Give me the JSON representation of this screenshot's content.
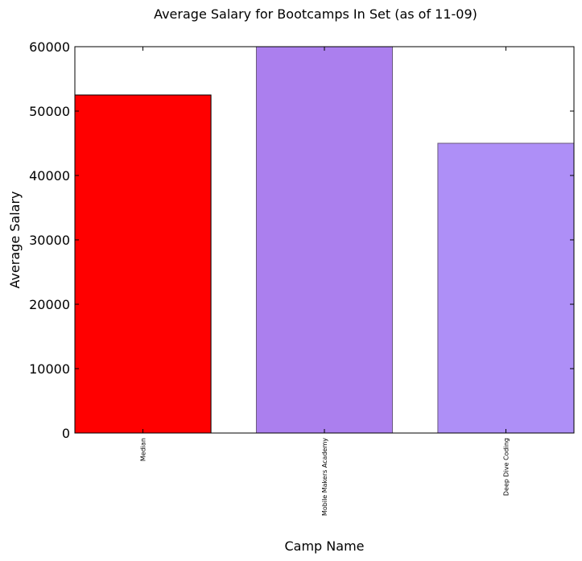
{
  "chart_data": {
    "type": "bar",
    "title": "Average Salary for Bootcamps In Set (as of 11-09)",
    "xlabel": "Camp Name",
    "ylabel": "Average Salary",
    "categories": [
      "Median",
      "Mobile Makers Academy",
      "Deep Dive Coding"
    ],
    "values": [
      52500,
      60000,
      45000
    ],
    "bar_colors": [
      "#ff0000",
      "#ab7fee",
      "#ae8ff7"
    ],
    "bar_edge_colors": [
      "#000000",
      "#6a5a7a",
      "#6a5a7a"
    ],
    "ylim": [
      0,
      60000
    ],
    "yticks": [
      0,
      10000,
      20000,
      30000,
      40000,
      50000,
      60000
    ],
    "ytick_labels": [
      "0",
      "10000",
      "20000",
      "30000",
      "40000",
      "50000",
      "60000"
    ],
    "grid": false,
    "legend": "none"
  }
}
